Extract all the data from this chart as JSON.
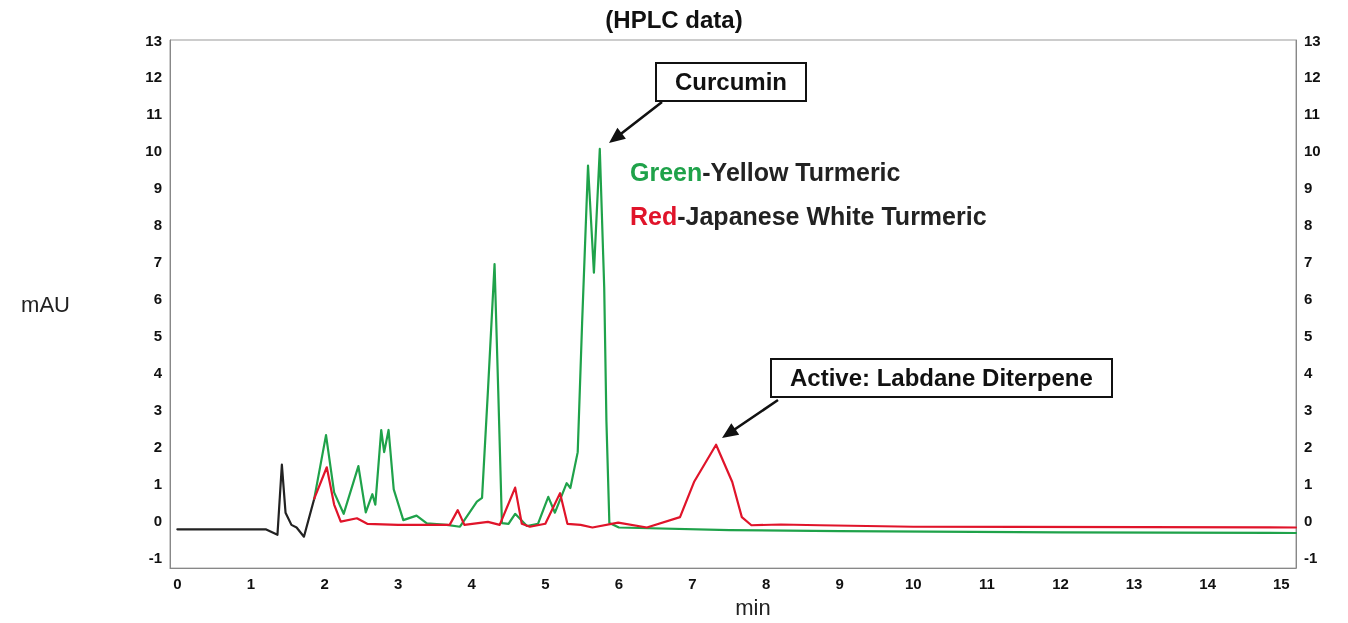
{
  "chart_data": {
    "type": "line",
    "title": "(HPLC data)",
    "xlabel": "min",
    "ylabel": "mAU",
    "xlim": [
      -0.1,
      15.2
    ],
    "xticks": [
      0,
      1,
      2,
      3,
      4,
      5,
      6,
      7,
      8,
      9,
      10,
      11,
      12,
      13,
      14,
      15
    ],
    "ylim": [
      -1.3,
      13
    ],
    "yticks": [
      -1,
      0,
      1,
      2,
      3,
      4,
      5,
      6,
      7,
      8,
      9,
      10,
      11,
      12,
      13
    ],
    "y2lim": [
      -1.3,
      13
    ],
    "y2ticks": [
      -1,
      0,
      1,
      2,
      3,
      4,
      5,
      6,
      7,
      8,
      9,
      10,
      11,
      12,
      13
    ],
    "grid": false,
    "legend": "top right",
    "marker": "none",
    "line_style": "solid",
    "annotations": [
      "Curcumin",
      "Active: Labdane Diterpene"
    ],
    "series": [
      {
        "color": "#222222",
        "x": [
          0,
          1.2,
          1.36,
          1.42,
          1.47,
          1.55,
          1.62,
          1.72,
          1.86
        ],
        "values": [
          -0.25,
          -0.25,
          -0.4,
          1.5,
          0.2,
          -0.13,
          -0.2,
          -0.45,
          0.58
        ]
      },
      {
        "name": "Green-Yellow Turmeric",
        "color": "#1fa24a",
        "x": [
          1.86,
          2.02,
          2.13,
          2.26,
          2.46,
          2.56,
          2.65,
          2.69,
          2.77,
          2.81,
          2.87,
          2.94,
          3.07,
          3.25,
          3.39,
          3.66,
          3.84,
          4.07,
          4.14,
          4.22,
          4.31,
          4.36,
          4.41,
          4.5,
          4.59,
          4.75,
          4.9,
          5.04,
          5.13,
          5.29,
          5.34,
          5.44,
          5.5,
          5.58,
          5.66,
          5.74,
          5.8,
          5.83,
          5.87,
          6,
          7.5,
          9,
          12,
          15.2
        ],
        "values": [
          0.58,
          2.3,
          0.75,
          0.17,
          1.46,
          0.21,
          0.7,
          0.42,
          2.44,
          1.84,
          2.44,
          0.83,
          0,
          0.12,
          -0.09,
          -0.13,
          -0.18,
          0.5,
          0.6,
          3.5,
          6.93,
          3.5,
          -0.08,
          -0.1,
          0.17,
          -0.16,
          -0.1,
          0.63,
          0.2,
          1,
          0.87,
          1.84,
          5.35,
          9.6,
          6.7,
          10.05,
          6.3,
          2.68,
          -0.08,
          -0.2,
          -0.27,
          -0.3,
          -0.33,
          -0.35
        ]
      },
      {
        "name": "Red-Japanese White Turmeric",
        "color": "#e0142a",
        "x": [
          1.86,
          2.03,
          2.13,
          2.22,
          2.44,
          2.58,
          3.0,
          3.7,
          3.81,
          3.9,
          4.22,
          4.38,
          4.59,
          4.68,
          4.79,
          5.0,
          5.2,
          5.3,
          5.48,
          5.64,
          5.99,
          6.38,
          6.83,
          7.02,
          7.32,
          7.54,
          7.67,
          7.8,
          8.2,
          8.73,
          10,
          15.2
        ],
        "values": [
          0.58,
          1.43,
          0.42,
          -0.04,
          0.05,
          -0.1,
          -0.13,
          -0.13,
          0.27,
          -0.13,
          -0.05,
          -0.13,
          0.88,
          -0.1,
          -0.18,
          -0.1,
          0.73,
          -0.1,
          -0.13,
          -0.2,
          -0.07,
          -0.2,
          0.08,
          1.03,
          2.04,
          1.03,
          0.08,
          -0.14,
          -0.12,
          -0.14,
          -0.18,
          -0.2
        ]
      }
    ]
  }
}
